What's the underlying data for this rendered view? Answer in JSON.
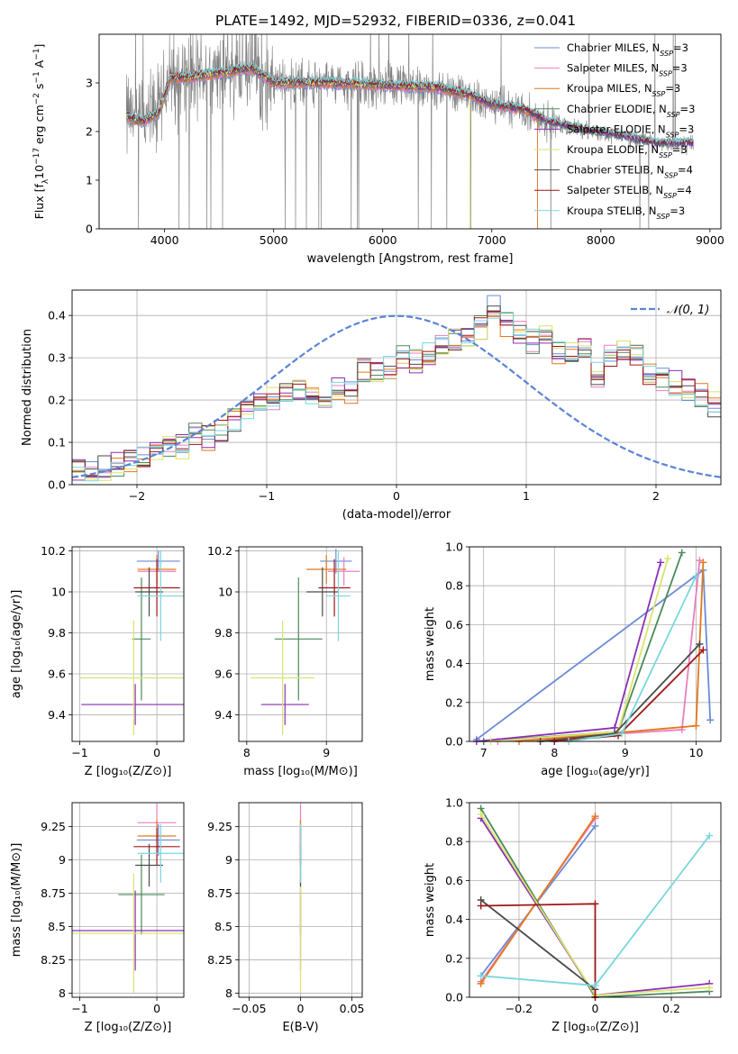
{
  "figure_title": "PLATE=1492, MJD=52932, FIBERID=0336, z=0.041",
  "colors": {
    "Chabrier MILES": "#6a8bd6",
    "Salpeter MILES": "#e87fbf",
    "Kroupa MILES": "#e5771a",
    "Chabrier ELODIE": "#4a8a5a",
    "Salpeter ELODIE": "#8b2fb5",
    "Kroupa ELODIE": "#d9e36a",
    "Chabrier STELIB": "#4a4a4a",
    "Salpeter STELIB": "#a11616",
    "Kroupa STELIB": "#79d6dc",
    "data": "#808080"
  },
  "chart_data": [
    {
      "id": "spectrum",
      "type": "line",
      "xlabel": "wavelength [Angstrom, rest frame]",
      "ylabel_parts": [
        "Flux [f",
        "λ",
        "10",
        "−17",
        " erg cm",
        "−2",
        " s",
        "−1",
        " A",
        "−1",
        "]"
      ],
      "xlim": [
        3400,
        9100
      ],
      "ylim": [
        0,
        4.0
      ],
      "xticks": [
        4000,
        5000,
        6000,
        7000,
        8000,
        9000
      ],
      "yticks": [
        0,
        1,
        2,
        3
      ],
      "legend": [
        {
          "name": "Chabrier MILES",
          "nssp": "3"
        },
        {
          "name": "Salpeter MILES",
          "nssp": "3"
        },
        {
          "name": "Kroupa MILES",
          "nssp": "3"
        },
        {
          "name": "Chabrier ELODIE",
          "nssp": "3"
        },
        {
          "name": "Salpeter ELODIE",
          "nssp": "3"
        },
        {
          "name": "Kroupa ELODIE",
          "nssp": "3"
        },
        {
          "name": "Chabrier STELIB",
          "nssp": "4"
        },
        {
          "name": "Salpeter STELIB",
          "nssp": "4"
        },
        {
          "name": "Kroupa STELIB",
          "nssp": "3"
        }
      ],
      "legend_position": "right",
      "data_range": [
        3650,
        8850
      ],
      "continuum": [
        [
          3650,
          2.3
        ],
        [
          3800,
          2.2
        ],
        [
          3950,
          2.4
        ],
        [
          4050,
          3.1
        ],
        [
          4200,
          3.1
        ],
        [
          4500,
          3.2
        ],
        [
          4800,
          3.3
        ],
        [
          5000,
          3.0
        ],
        [
          5500,
          3.0
        ],
        [
          6000,
          2.95
        ],
        [
          6500,
          2.9
        ],
        [
          6800,
          2.75
        ],
        [
          7000,
          2.55
        ],
        [
          7300,
          2.45
        ],
        [
          7500,
          2.2
        ],
        [
          7800,
          2.05
        ],
        [
          8200,
          1.9
        ],
        [
          8500,
          1.75
        ],
        [
          8850,
          1.75
        ]
      ]
    },
    {
      "id": "residual_hist",
      "type": "line",
      "xlabel": "(data-model)/error",
      "ylabel": "Normed distribution",
      "xlim": [
        -2.5,
        2.5
      ],
      "ylim": [
        0,
        0.46
      ],
      "xticks": [
        -2,
        -1,
        0,
        1,
        2
      ],
      "yticks": [
        0.0,
        0.1,
        0.2,
        0.3,
        0.4
      ],
      "bin_width": 0.1,
      "gaussian_label": "𝒩(0, 1)",
      "hist_base": [
        0.03,
        0.035,
        0.04,
        0.05,
        0.055,
        0.07,
        0.07,
        0.085,
        0.09,
        0.12,
        0.11,
        0.13,
        0.15,
        0.17,
        0.19,
        0.2,
        0.21,
        0.22,
        0.21,
        0.2,
        0.23,
        0.22,
        0.27,
        0.26,
        0.28,
        0.3,
        0.29,
        0.31,
        0.33,
        0.34,
        0.35,
        0.37,
        0.42,
        0.38,
        0.36,
        0.34,
        0.35,
        0.31,
        0.32,
        0.33,
        0.26,
        0.3,
        0.32,
        0.3,
        0.26,
        0.25,
        0.24,
        0.22,
        0.21,
        0.19,
        0.18,
        0.19,
        0.17,
        0.14,
        0.12,
        0.1,
        0.09,
        0.07,
        0.06,
        0.05
      ]
    },
    {
      "id": "age_vs_Z",
      "type": "scatter",
      "xlabel": "Z [log₁₀(Z/Z⊙)]",
      "ylabel": "age  [log₁₀(age/yr)]",
      "xlim": [
        -1.1,
        0.35
      ],
      "ylim": [
        9.27,
        10.22
      ],
      "xticks": [
        -1,
        0
      ],
      "yticks": [
        9.4,
        9.6,
        9.8,
        10.0,
        10.2
      ],
      "points": [
        {
          "s": "Chabrier MILES",
          "x": 0.02,
          "y": 10.15,
          "xerr": 0.28,
          "yerr": 0.05
        },
        {
          "s": "Salpeter MILES",
          "x": 0.0,
          "y": 10.1,
          "xerr": 0.25,
          "yerr": 0.08
        },
        {
          "s": "Kroupa MILES",
          "x": 0.0,
          "y": 10.11,
          "xerr": 0.25,
          "yerr": 0.07
        },
        {
          "s": "Chabrier ELODIE",
          "x": -0.2,
          "y": 9.77,
          "xerr": 0.12,
          "yerr": 0.3
        },
        {
          "s": "Salpeter ELODIE",
          "x": -0.28,
          "y": 9.45,
          "xerr": 0.7,
          "yerr": 0.1
        },
        {
          "s": "Kroupa ELODIE",
          "x": -0.3,
          "y": 9.58,
          "xerr": 0.7,
          "yerr": 0.28
        },
        {
          "s": "Chabrier STELIB",
          "x": -0.1,
          "y": 10.0,
          "xerr": 0.18,
          "yerr": 0.12
        },
        {
          "s": "Salpeter STELIB",
          "x": 0.0,
          "y": 10.02,
          "xerr": 0.3,
          "yerr": 0.14
        },
        {
          "s": "Kroupa STELIB",
          "x": 0.05,
          "y": 9.98,
          "xerr": 0.3,
          "yerr": 0.22
        }
      ]
    },
    {
      "id": "age_vs_mass",
      "type": "scatter",
      "xlabel": "mass [log₁₀(M/M⊙)]",
      "ylabel": "",
      "xlim": [
        7.9,
        9.45
      ],
      "ylim": [
        9.27,
        10.22
      ],
      "xticks": [
        8,
        9
      ],
      "yticks": [
        9.4,
        9.6,
        9.8,
        10.0,
        10.2
      ],
      "points": [
        {
          "s": "Chabrier MILES",
          "x": 9.12,
          "y": 10.15,
          "xerr": 0.2,
          "yerr": 0.06
        },
        {
          "s": "Salpeter MILES",
          "x": 9.22,
          "y": 10.1,
          "xerr": 0.2,
          "yerr": 0.07
        },
        {
          "s": "Kroupa MILES",
          "x": 9.0,
          "y": 10.11,
          "xerr": 0.25,
          "yerr": 0.07
        },
        {
          "s": "Chabrier ELODIE",
          "x": 8.65,
          "y": 9.77,
          "xerr": 0.3,
          "yerr": 0.3
        },
        {
          "s": "Salpeter ELODIE",
          "x": 8.48,
          "y": 9.45,
          "xerr": 0.3,
          "yerr": 0.1
        },
        {
          "s": "Kroupa ELODIE",
          "x": 8.45,
          "y": 9.58,
          "xerr": 0.4,
          "yerr": 0.28
        },
        {
          "s": "Chabrier STELIB",
          "x": 8.95,
          "y": 10.0,
          "xerr": 0.2,
          "yerr": 0.12
        },
        {
          "s": "Salpeter STELIB",
          "x": 9.1,
          "y": 10.02,
          "xerr": 0.2,
          "yerr": 0.14
        },
        {
          "s": "Kroupa STELIB",
          "x": 9.15,
          "y": 9.98,
          "xerr": 0.15,
          "yerr": 0.22
        }
      ]
    },
    {
      "id": "weight_vs_age",
      "type": "line",
      "xlabel": "age  [log₁₀(age/yr)]",
      "ylabel": "mass weight",
      "xlim": [
        6.8,
        10.35
      ],
      "ylim": [
        0,
        1.0
      ],
      "xticks": [
        7,
        8,
        9,
        10
      ],
      "yticks": [
        0.0,
        0.2,
        0.4,
        0.6,
        0.8,
        1.0
      ],
      "series": [
        {
          "s": "Chabrier MILES",
          "pts": [
            [
              6.9,
              0.01
            ],
            [
              10.1,
              0.88
            ],
            [
              10.2,
              0.11
            ]
          ]
        },
        {
          "s": "Salpeter MILES",
          "pts": [
            [
              7.2,
              0.0
            ],
            [
              9.8,
              0.06
            ],
            [
              10.05,
              0.93
            ]
          ]
        },
        {
          "s": "Kroupa MILES",
          "pts": [
            [
              7.5,
              0.0
            ],
            [
              10.0,
              0.08
            ],
            [
              10.1,
              0.92
            ]
          ]
        },
        {
          "s": "Chabrier ELODIE",
          "pts": [
            [
              7.0,
              0.0
            ],
            [
              8.9,
              0.05
            ],
            [
              9.8,
              0.97
            ]
          ]
        },
        {
          "s": "Salpeter ELODIE",
          "pts": [
            [
              6.9,
              0.0
            ],
            [
              8.85,
              0.07
            ],
            [
              9.5,
              0.92
            ]
          ]
        },
        {
          "s": "Kroupa ELODIE",
          "pts": [
            [
              7.1,
              0.0
            ],
            [
              8.9,
              0.05
            ],
            [
              9.6,
              0.94
            ]
          ]
        },
        {
          "s": "Chabrier STELIB",
          "pts": [
            [
              7.8,
              0.0
            ],
            [
              8.85,
              0.04
            ],
            [
              10.05,
              0.5
            ]
          ]
        },
        {
          "s": "Salpeter STELIB",
          "pts": [
            [
              8.0,
              0.0
            ],
            [
              8.9,
              0.03
            ],
            [
              10.1,
              0.47
            ]
          ]
        },
        {
          "s": "Kroupa STELIB",
          "pts": [
            [
              8.2,
              0.0
            ],
            [
              8.95,
              0.04
            ],
            [
              10.0,
              0.85
            ]
          ]
        }
      ]
    },
    {
      "id": "mass_vs_Z",
      "type": "scatter",
      "xlabel": "Z [log₁₀(Z/Z⊙)]",
      "ylabel": "mass [log₁₀(M/M⊙)]",
      "xlim": [
        -1.1,
        0.35
      ],
      "ylim": [
        7.97,
        9.43
      ],
      "xticks": [
        -1,
        0
      ],
      "yticks": [
        8.0,
        8.25,
        8.5,
        8.75,
        9.0,
        9.25
      ],
      "points": [
        {
          "s": "Chabrier MILES",
          "x": 0.02,
          "y": 9.15,
          "xerr": 0.28,
          "yerr": 0.12
        },
        {
          "s": "Salpeter MILES",
          "x": 0.0,
          "y": 9.28,
          "xerr": 0.25,
          "yerr": 0.14
        },
        {
          "s": "Kroupa MILES",
          "x": 0.0,
          "y": 9.18,
          "xerr": 0.25,
          "yerr": 0.12
        },
        {
          "s": "Chabrier ELODIE",
          "x": -0.2,
          "y": 8.74,
          "xerr": 0.3,
          "yerr": 0.3
        },
        {
          "s": "Salpeter ELODIE",
          "x": -0.28,
          "y": 8.47,
          "xerr": 0.85,
          "yerr": 0.3
        },
        {
          "s": "Kroupa ELODIE",
          "x": -0.3,
          "y": 8.45,
          "xerr": 0.85,
          "yerr": 0.45
        },
        {
          "s": "Chabrier STELIB",
          "x": -0.1,
          "y": 8.96,
          "xerr": 0.18,
          "yerr": 0.16
        },
        {
          "s": "Salpeter STELIB",
          "x": 0.0,
          "y": 9.1,
          "xerr": 0.3,
          "yerr": 0.14
        },
        {
          "s": "Kroupa STELIB",
          "x": 0.05,
          "y": 9.05,
          "xerr": 0.3,
          "yerr": 0.22
        }
      ]
    },
    {
      "id": "mass_vs_ebv",
      "type": "scatter",
      "xlabel": "E(B-V)",
      "ylabel": "",
      "xlim": [
        -0.06,
        0.06
      ],
      "ylim": [
        7.97,
        9.43
      ],
      "xticks": [
        -0.05,
        0.0,
        0.05
      ],
      "yticks": [
        8.0,
        8.25,
        8.5,
        8.75,
        9.0,
        9.25
      ],
      "points": [
        {
          "s": "Chabrier MILES",
          "x": 0.0,
          "y": 9.15,
          "xerr": 0.0,
          "yerr": 0.12
        },
        {
          "s": "Salpeter MILES",
          "x": 0.0,
          "y": 9.28,
          "xerr": 0.0,
          "yerr": 0.14
        },
        {
          "s": "Kroupa MILES",
          "x": 0.0,
          "y": 9.18,
          "xerr": 0.0,
          "yerr": 0.12
        },
        {
          "s": "Chabrier ELODIE",
          "x": 0.0,
          "y": 8.74,
          "xerr": 0.0,
          "yerr": 0.3
        },
        {
          "s": "Salpeter ELODIE",
          "x": 0.0,
          "y": 8.47,
          "xerr": 0.0,
          "yerr": 0.3
        },
        {
          "s": "Kroupa ELODIE",
          "x": 0.0,
          "y": 8.45,
          "xerr": 0.0,
          "yerr": 0.45
        },
        {
          "s": "Chabrier STELIB",
          "x": 0.0,
          "y": 8.96,
          "xerr": 0.0,
          "yerr": 0.16
        },
        {
          "s": "Salpeter STELIB",
          "x": 0.0,
          "y": 9.1,
          "xerr": 0.0,
          "yerr": 0.14
        },
        {
          "s": "Kroupa STELIB",
          "x": 0.0,
          "y": 9.05,
          "xerr": 0.0,
          "yerr": 0.22
        }
      ]
    },
    {
      "id": "weight_vs_Z",
      "type": "line",
      "xlabel": "Z [log₁₀(Z/Z⊙)]",
      "ylabel": "mass weight",
      "xlim": [
        -0.33,
        0.33
      ],
      "ylim": [
        0,
        1.0
      ],
      "xticks": [
        -0.2,
        0.0,
        0.2
      ],
      "yticks": [
        0.0,
        0.2,
        0.4,
        0.6,
        0.8,
        1.0
      ],
      "series": [
        {
          "s": "Chabrier MILES",
          "pts": [
            [
              -0.3,
              0.11
            ],
            [
              0.0,
              0.88
            ]
          ]
        },
        {
          "s": "Salpeter MILES",
          "pts": [
            [
              -0.3,
              0.08
            ],
            [
              0.0,
              0.92
            ]
          ]
        },
        {
          "s": "Kroupa MILES",
          "pts": [
            [
              -0.3,
              0.07
            ],
            [
              0.0,
              0.93
            ]
          ]
        },
        {
          "s": "Chabrier ELODIE",
          "pts": [
            [
              -0.3,
              0.97
            ],
            [
              0.0,
              0.0
            ],
            [
              0.3,
              0.03
            ]
          ]
        },
        {
          "s": "Salpeter ELODIE",
          "pts": [
            [
              -0.3,
              0.92
            ],
            [
              0.0,
              0.01
            ],
            [
              0.3,
              0.07
            ]
          ]
        },
        {
          "s": "Kroupa ELODIE",
          "pts": [
            [
              -0.3,
              0.94
            ],
            [
              0.0,
              0.01
            ],
            [
              0.3,
              0.05
            ]
          ]
        },
        {
          "s": "Chabrier STELIB",
          "pts": [
            [
              -0.3,
              0.5
            ],
            [
              0.0,
              0.04
            ]
          ]
        },
        {
          "s": "Salpeter STELIB",
          "pts": [
            [
              -0.3,
              0.47
            ],
            [
              0.0,
              0.48
            ],
            [
              0.0,
              0.0
            ]
          ]
        },
        {
          "s": "Kroupa STELIB",
          "pts": [
            [
              -0.3,
              0.11
            ],
            [
              0.0,
              0.06
            ],
            [
              0.3,
              0.83
            ]
          ]
        }
      ]
    }
  ]
}
